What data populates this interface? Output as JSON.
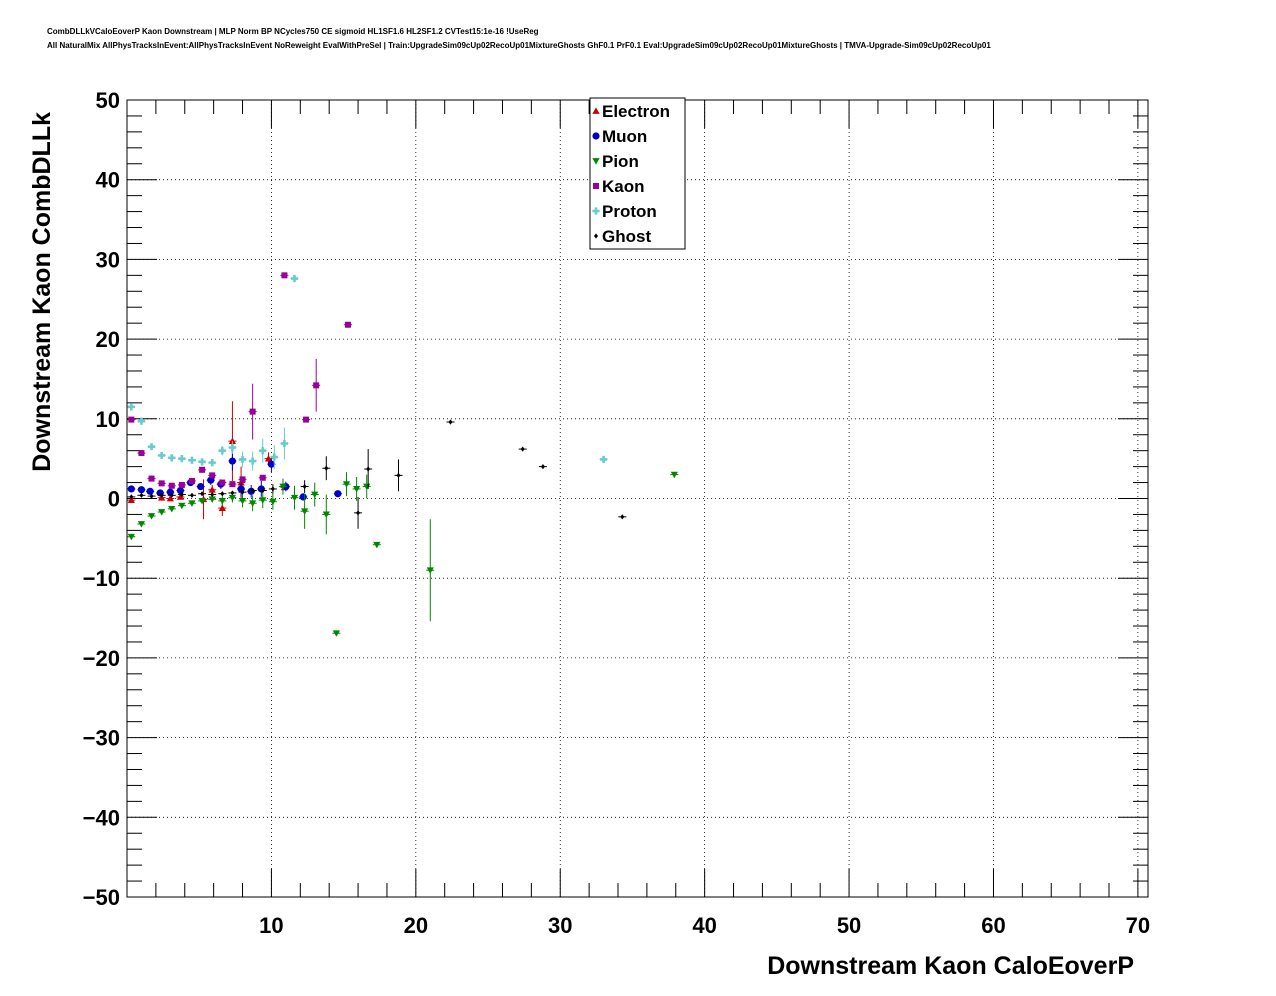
{
  "header": {
    "line1": "CombDLLkVCaloEoverP Kaon Downstream | MLP Norm BP NCycles750 CE sigmoid HL1SF1.6 HL2SF1.2 CVTest15:1e-16 !UseReg",
    "line2": "All NaturalMix AllPhysTracksInEvent:AllPhysTracksInEvent NoReweight EvalWithPreSel | Train:UpgradeSim09cUp02RecoUp01MixtureGhosts GhF0.1 PrF0.1 Eval:UpgradeSim09cUp02RecoUp01MixtureGhosts | TMVA-Upgrade-Sim09cUp02RecoUp01"
  },
  "chart_data": {
    "type": "scatter",
    "xlabel": "Downstream Kaon CaloEoverP",
    "ylabel": "Downstream Kaon CombDLLk",
    "xlim": [
      0,
      70.7
    ],
    "ylim": [
      -50,
      50
    ],
    "xticks": [
      10,
      20,
      30,
      40,
      50,
      60,
      70
    ],
    "yticks": [
      -50,
      -40,
      -30,
      -20,
      -10,
      0,
      10,
      20,
      30,
      40,
      50
    ],
    "xtick_labels": [
      "10",
      "20",
      "30",
      "40",
      "50",
      "60",
      "70"
    ],
    "ytick_labels": [
      "−50",
      "−40",
      "−30",
      "−20",
      "−10",
      "0",
      "10",
      "20",
      "30",
      "40",
      "50"
    ],
    "grid": true,
    "legend_position": "top-center",
    "series": [
      {
        "name": "Electron",
        "color": "#cc0000",
        "marker": "triangle-up",
        "points": [
          [
            0.3,
            -0.2,
            0.3
          ],
          [
            2.4,
            0.1,
            0.3
          ],
          [
            3.0,
            0,
            0.3
          ],
          [
            3.7,
            0.2,
            0.3
          ],
          [
            5.3,
            -0.1,
            2.5
          ],
          [
            5.9,
            1.1,
            0.6
          ],
          [
            6.6,
            -1.2,
            1.0
          ],
          [
            7.3,
            7.2,
            5.0
          ],
          [
            7.9,
            2.0,
            2.0
          ],
          [
            9.8,
            5.0,
            0.8
          ],
          [
            10.9,
            1.4,
            0.5
          ]
        ]
      },
      {
        "name": "Muon",
        "color": "#0000cc",
        "marker": "circle",
        "points": [
          [
            0.3,
            1.2,
            0.4
          ],
          [
            1.0,
            1.1,
            0.3
          ],
          [
            1.6,
            0.9,
            0.3
          ],
          [
            2.3,
            0.7,
            0.3
          ],
          [
            3.0,
            0.8,
            0.3
          ],
          [
            3.7,
            1.0,
            0.3
          ],
          [
            4.4,
            2.0,
            0.4
          ],
          [
            5.1,
            1.5,
            0.5
          ],
          [
            5.8,
            2.3,
            0.6
          ],
          [
            6.5,
            1.8,
            0.6
          ],
          [
            7.3,
            4.7,
            1.2
          ],
          [
            7.9,
            1.2,
            1.0
          ],
          [
            8.6,
            0.9,
            0.8
          ],
          [
            9.3,
            1.2,
            1.0
          ],
          [
            10.0,
            4.3,
            1.0
          ],
          [
            11.0,
            1.5,
            0.6
          ],
          [
            12.2,
            0.2,
            0.5
          ],
          [
            14.6,
            0.6,
            0.3
          ]
        ]
      },
      {
        "name": "Pion",
        "color": "#008800",
        "marker": "triangle-down",
        "points": [
          [
            0.3,
            -4.8,
            0.4
          ],
          [
            1.0,
            -3.2,
            0.3
          ],
          [
            1.7,
            -2.2,
            0.3
          ],
          [
            2.4,
            -1.7,
            0.3
          ],
          [
            3.1,
            -1.3,
            0.3
          ],
          [
            3.8,
            -0.9,
            0.3
          ],
          [
            4.5,
            -0.6,
            0.3
          ],
          [
            5.2,
            -0.3,
            0.3
          ],
          [
            5.9,
            -0.1,
            0.4
          ],
          [
            6.6,
            -0.3,
            0.6
          ],
          [
            7.3,
            0.1,
            0.6
          ],
          [
            8.0,
            -0.3,
            0.8
          ],
          [
            8.7,
            -0.6,
            1.0
          ],
          [
            9.4,
            -0.2,
            1.0
          ],
          [
            10.1,
            -0.4,
            1.0
          ],
          [
            10.8,
            1.5,
            1.0
          ],
          [
            11.6,
            0.1,
            1.5
          ],
          [
            12.3,
            -1.6,
            2.2
          ],
          [
            13.0,
            0.5,
            1.5
          ],
          [
            13.8,
            -2.0,
            2.5
          ],
          [
            14.5,
            -16.9,
            0.3
          ],
          [
            15.2,
            1.8,
            1.5
          ],
          [
            15.9,
            1.2,
            1.5
          ],
          [
            16.6,
            1.5,
            1.5
          ],
          [
            17.3,
            -5.8,
            0.3
          ],
          [
            21.0,
            -9.0,
            6.4
          ],
          [
            37.9,
            3.0,
            0.3
          ]
        ]
      },
      {
        "name": "Kaon",
        "color": "#990099",
        "marker": "square",
        "points": [
          [
            0.3,
            9.9,
            0.3
          ],
          [
            1.0,
            5.7,
            0.3
          ],
          [
            1.7,
            2.5,
            0.3
          ],
          [
            2.4,
            1.9,
            0.3
          ],
          [
            3.1,
            1.6,
            0.3
          ],
          [
            3.8,
            1.7,
            0.3
          ],
          [
            4.5,
            2.2,
            0.3
          ],
          [
            5.2,
            3.6,
            0.3
          ],
          [
            5.9,
            2.9,
            0.3
          ],
          [
            6.6,
            2.0,
            0.3
          ],
          [
            7.3,
            1.8,
            0.3
          ],
          [
            8.0,
            2.4,
            0.4
          ],
          [
            8.7,
            10.9,
            3.5
          ],
          [
            9.4,
            2.6,
            0.5
          ],
          [
            10.9,
            28.0,
            0.3
          ],
          [
            12.4,
            9.9,
            0.3
          ],
          [
            13.1,
            14.2,
            3.3
          ],
          [
            15.3,
            21.8,
            0.3
          ]
        ]
      },
      {
        "name": "Proton",
        "color": "#66cccc",
        "marker": "cross",
        "points": [
          [
            0.3,
            11.5,
            0.3
          ],
          [
            1.0,
            9.7,
            0.3
          ],
          [
            1.7,
            6.5,
            0.5
          ],
          [
            2.4,
            5.4,
            0.3
          ],
          [
            3.1,
            5.1,
            0.3
          ],
          [
            3.8,
            5.0,
            0.3
          ],
          [
            4.5,
            4.8,
            0.3
          ],
          [
            5.2,
            4.6,
            0.3
          ],
          [
            5.9,
            4.5,
            0.4
          ],
          [
            6.6,
            6.0,
            0.6
          ],
          [
            7.3,
            6.4,
            0.8
          ],
          [
            8.0,
            4.9,
            1.0
          ],
          [
            8.7,
            4.7,
            1.2
          ],
          [
            9.4,
            6.0,
            1.5
          ],
          [
            10.2,
            5.2,
            1.5
          ],
          [
            10.9,
            6.9,
            2.0
          ],
          [
            11.6,
            27.6,
            0.3
          ],
          [
            33.0,
            4.9,
            0.3
          ]
        ]
      },
      {
        "name": "Ghost",
        "color": "#000000",
        "marker": "diamond",
        "points": [
          [
            0.3,
            0.2,
            0.3
          ],
          [
            1.0,
            0.4,
            0.3
          ],
          [
            1.7,
            0.3,
            0.3
          ],
          [
            2.4,
            0.4,
            0.3
          ],
          [
            3.1,
            0.4,
            0.3
          ],
          [
            3.8,
            0.5,
            0.3
          ],
          [
            4.5,
            0.4,
            0.3
          ],
          [
            5.2,
            0.6,
            0.3
          ],
          [
            5.9,
            0.5,
            0.3
          ],
          [
            6.6,
            0.6,
            0.3
          ],
          [
            7.3,
            0.7,
            0.3
          ],
          [
            8.0,
            0.8,
            0.4
          ],
          [
            8.7,
            1.0,
            0.5
          ],
          [
            9.4,
            1.0,
            0.5
          ],
          [
            10.1,
            1.2,
            0.6
          ],
          [
            12.3,
            1.5,
            0.8
          ],
          [
            13.8,
            3.8,
            1.5
          ],
          [
            16.0,
            -1.8,
            2.0
          ],
          [
            16.7,
            3.7,
            2.5
          ],
          [
            18.8,
            2.9,
            2.0
          ],
          [
            22.4,
            9.6,
            0.3
          ],
          [
            27.4,
            6.2,
            0.3
          ],
          [
            28.8,
            4.0,
            0.3
          ],
          [
            34.3,
            -2.3,
            0.3
          ]
        ]
      }
    ]
  }
}
